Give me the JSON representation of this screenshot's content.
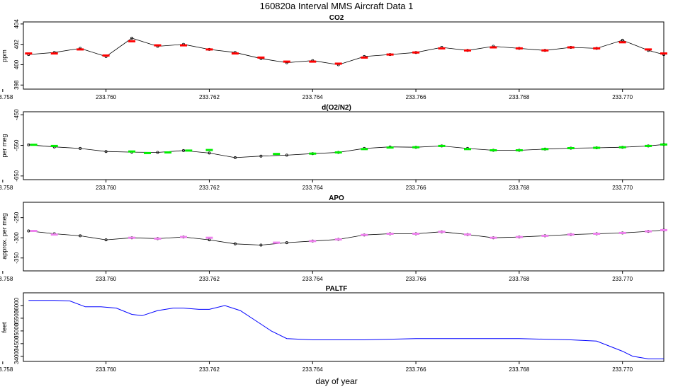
{
  "figure": {
    "title": "160820a   Interval MMS Aircraft Data 1",
    "xlabel": "day of year"
  },
  "colors": {
    "co2": "#ff0000",
    "o2n2": "#00ee00",
    "apo": "#ee82ee",
    "paltf": "#0000ff",
    "raw": "#000000"
  },
  "chart_data": [
    {
      "type": "line",
      "title": "CO2",
      "ylabel": "ppm",
      "xlim": [
        233.7584,
        233.7708
      ],
      "ylim": [
        397.6,
        404.2
      ],
      "yticks": [
        398,
        400,
        402,
        404
      ],
      "xticks": [
        233.758,
        233.76,
        233.762,
        233.764,
        233.766,
        233.768,
        233.77
      ],
      "xtick_labels": [
        "233.758",
        "233.760",
        "233.762",
        "233.764",
        "233.766",
        "233.768",
        "233.770"
      ],
      "series": [
        {
          "style": "raw-points-line",
          "x": [
            233.7585,
            233.759,
            233.7595,
            233.76,
            233.7605,
            233.761,
            233.7615,
            233.762,
            233.7625,
            233.763,
            233.7635,
            233.764,
            233.7645,
            233.765,
            233.7655,
            233.766,
            233.7665,
            233.767,
            233.7675,
            233.768,
            233.7685,
            233.769,
            233.7695,
            233.77,
            233.7705,
            233.7708
          ],
          "y": [
            401.0,
            401.2,
            401.6,
            400.8,
            402.6,
            401.8,
            402.0,
            401.5,
            401.2,
            400.6,
            400.2,
            400.4,
            400.0,
            400.8,
            401.0,
            401.2,
            401.7,
            401.4,
            401.8,
            401.6,
            401.4,
            401.7,
            401.6,
            402.4,
            401.4,
            401.0
          ]
        },
        {
          "style": "interval-means",
          "x": [
            233.7585,
            233.759,
            233.7595,
            233.76,
            233.7605,
            233.761,
            233.7615,
            233.762,
            233.7625,
            233.763,
            233.7635,
            233.764,
            233.7645,
            233.765,
            233.7655,
            233.766,
            233.7665,
            233.767,
            233.7675,
            233.768,
            233.7685,
            233.769,
            233.7695,
            233.77,
            233.7705,
            233.7708
          ],
          "y": [
            401.1,
            401.1,
            401.5,
            400.9,
            402.3,
            401.9,
            401.9,
            401.5,
            401.1,
            400.7,
            400.3,
            400.3,
            400.1,
            400.7,
            401.0,
            401.2,
            401.6,
            401.4,
            401.7,
            401.6,
            401.4,
            401.7,
            401.6,
            402.2,
            401.5,
            401.1
          ]
        }
      ]
    },
    {
      "type": "line",
      "title": "d(O2/N2)",
      "ylabel": "per meg",
      "xlim": [
        233.7584,
        233.7708
      ],
      "ylim": [
        -662,
        -440
      ],
      "yticks": [
        -650,
        -550,
        -450
      ],
      "xticks": [
        233.758,
        233.76,
        233.762,
        233.764,
        233.766,
        233.768,
        233.77
      ],
      "xtick_labels": [
        "233.758",
        "233.760",
        "233.762",
        "233.764",
        "233.766",
        "233.768",
        "233.770"
      ],
      "series": [
        {
          "style": "raw-points-line",
          "x": [
            233.7585,
            233.759,
            233.7595,
            233.76,
            233.7605,
            233.761,
            233.7615,
            233.762,
            233.7625,
            233.763,
            233.7635,
            233.764,
            233.7645,
            233.765,
            233.7655,
            233.766,
            233.7665,
            233.767,
            233.7675,
            233.768,
            233.7685,
            233.769,
            233.7695,
            233.77,
            233.7705,
            233.7708
          ],
          "y": [
            -548,
            -555,
            -560,
            -570,
            -572,
            -573,
            -567,
            -575,
            -590,
            -585,
            -582,
            -577,
            -573,
            -560,
            -555,
            -556,
            -552,
            -560,
            -566,
            -566,
            -562,
            -559,
            -558,
            -556,
            -552,
            -547
          ]
        },
        {
          "style": "interval-means",
          "x": [
            233.7586,
            233.759,
            233.7605,
            233.7608,
            233.7612,
            233.7616,
            233.762,
            233.7633,
            233.764,
            233.7645,
            233.765,
            233.7655,
            233.766,
            233.7665,
            233.767,
            233.7675,
            233.768,
            233.7685,
            233.769,
            233.7695,
            233.77,
            233.7705,
            233.7708
          ],
          "y": [
            -548,
            -552,
            -570,
            -575,
            -573,
            -567,
            -565,
            -578,
            -577,
            -573,
            -562,
            -557,
            -556,
            -552,
            -562,
            -566,
            -566,
            -562,
            -559,
            -558,
            -556,
            -552,
            -547
          ]
        }
      ]
    },
    {
      "type": "line",
      "title": "APO",
      "ylabel": "approx. per meg",
      "xlim": [
        233.7584,
        233.7708
      ],
      "ylim": [
        -382,
        -212
      ],
      "yticks": [
        -350,
        -300,
        -250
      ],
      "xticks": [
        233.758,
        233.76,
        233.762,
        233.764,
        233.766,
        233.768,
        233.77
      ],
      "xtick_labels": [
        "233.758",
        "233.760",
        "233.762",
        "233.764",
        "233.766",
        "233.768",
        "233.770"
      ],
      "series": [
        {
          "style": "raw-points-line",
          "x": [
            233.7585,
            233.759,
            233.7595,
            233.76,
            233.7605,
            233.761,
            233.7615,
            233.762,
            233.7625,
            233.763,
            233.7635,
            233.764,
            233.7645,
            233.765,
            233.7655,
            233.766,
            233.7665,
            233.767,
            233.7675,
            233.768,
            233.7685,
            233.769,
            233.7695,
            233.77,
            233.7705,
            233.7708
          ],
          "y": [
            -283,
            -290,
            -295,
            -305,
            -300,
            -302,
            -298,
            -305,
            -315,
            -318,
            -312,
            -308,
            -304,
            -293,
            -290,
            -290,
            -285,
            -292,
            -300,
            -298,
            -295,
            -292,
            -290,
            -288,
            -284,
            -281
          ]
        },
        {
          "style": "interval-means",
          "x": [
            233.7586,
            233.759,
            233.7605,
            233.761,
            233.7615,
            233.762,
            233.7633,
            233.764,
            233.7645,
            233.765,
            233.7655,
            233.766,
            233.7665,
            233.767,
            233.7675,
            233.768,
            233.7685,
            233.769,
            233.7695,
            233.77,
            233.7705,
            233.7708
          ],
          "y": [
            -283,
            -292,
            -300,
            -302,
            -298,
            -300,
            -312,
            -308,
            -304,
            -293,
            -290,
            -290,
            -285,
            -292,
            -300,
            -298,
            -295,
            -292,
            -290,
            -288,
            -284,
            -281
          ]
        }
      ]
    },
    {
      "type": "line",
      "title": "PALTF",
      "ylabel": "feet",
      "xlabel": "day of year",
      "xlim": [
        233.7584,
        233.7708
      ],
      "ylim": [
        33800,
        36500
      ],
      "yticks": [
        34000,
        34500,
        35000,
        35500,
        36000
      ],
      "xticks": [
        233.758,
        233.76,
        233.762,
        233.764,
        233.766,
        233.768,
        233.77
      ],
      "xtick_labels": [
        "233.758",
        "233.760",
        "233.762",
        "233.764",
        "233.766",
        "233.768",
        "233.770"
      ],
      "series": [
        {
          "style": "line",
          "x": [
            233.7585,
            233.759,
            233.7593,
            233.7596,
            233.7599,
            233.7602,
            233.7605,
            233.7607,
            233.761,
            233.7613,
            233.7615,
            233.7618,
            233.762,
            233.7623,
            233.7626,
            233.7629,
            233.7632,
            233.7635,
            233.764,
            233.765,
            233.766,
            233.767,
            233.768,
            233.769,
            233.7695,
            233.77,
            233.7702,
            233.7705,
            233.7708
          ],
          "y": [
            36200,
            36200,
            36180,
            35950,
            35950,
            35900,
            35650,
            35600,
            35800,
            35900,
            35900,
            35850,
            35850,
            36000,
            35800,
            35400,
            35000,
            34700,
            34650,
            34650,
            34700,
            34700,
            34700,
            34650,
            34600,
            34200,
            34000,
            33900,
            33900
          ]
        }
      ]
    }
  ]
}
